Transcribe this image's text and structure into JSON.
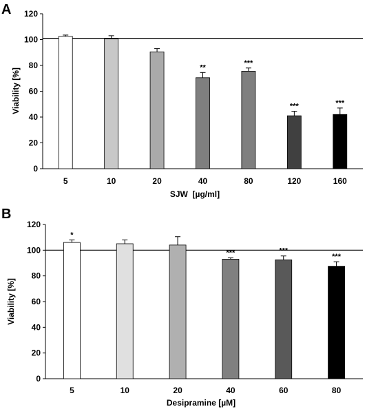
{
  "chart_data": [
    {
      "type": "bar",
      "panel_label": "A",
      "categories": [
        "5",
        "10",
        "20",
        "40",
        "80",
        "120",
        "160"
      ],
      "values": [
        102.5,
        100.5,
        90.5,
        70.5,
        75.5,
        41.0,
        42.0
      ],
      "errors": [
        1.0,
        2.5,
        2.5,
        4.0,
        2.5,
        3.5,
        5.0
      ],
      "significance": [
        "",
        "",
        "",
        "**",
        "***",
        "***",
        "***"
      ],
      "bar_colors": [
        "#ffffff",
        "#c8c8c8",
        "#aaaaaa",
        "#7f7f7f",
        "#7f7f7f",
        "#404040",
        "#000000"
      ],
      "xlabel": "SJW  [µg/ml]",
      "ylabel": "Viability [%]",
      "ylim": [
        0,
        120
      ],
      "yticks": [
        0,
        20,
        40,
        60,
        80,
        100,
        120
      ],
      "reference_line": 101,
      "grid": false
    },
    {
      "type": "bar",
      "panel_label": "B",
      "categories": [
        "5",
        "10",
        "20",
        "40",
        "60",
        "80"
      ],
      "values": [
        106.0,
        105.0,
        104.0,
        93.0,
        92.5,
        87.5
      ],
      "errors": [
        2.0,
        3.0,
        6.5,
        1.0,
        3.0,
        3.5
      ],
      "significance": [
        "*",
        "",
        "",
        "***",
        "***",
        "***"
      ],
      "bar_colors": [
        "#ffffff",
        "#e0e0e0",
        "#b0b0b0",
        "#808080",
        "#595959",
        "#000000"
      ],
      "xlabel": "Desipramine [µM]",
      "ylabel": "Viability [%]",
      "ylim": [
        0,
        120
      ],
      "yticks": [
        0,
        20,
        40,
        60,
        80,
        100,
        120
      ],
      "reference_line": 100,
      "grid": false
    }
  ]
}
